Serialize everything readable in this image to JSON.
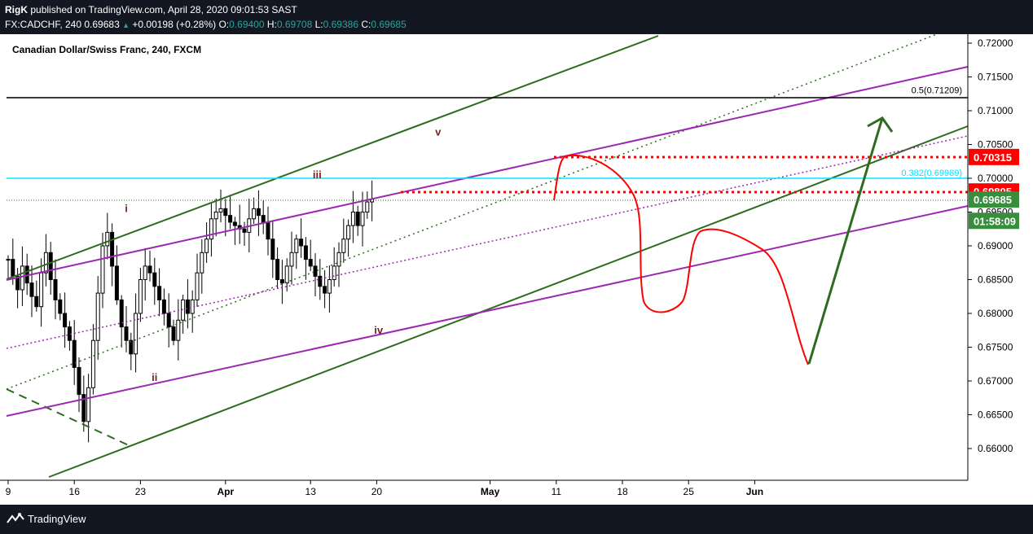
{
  "header": {
    "publisher": "RigK",
    "published_text": "published on TradingView.com, April 28, 2020 09:01:53 SAST",
    "symbol": "FX:CADCHF, 240",
    "last": "0.69683",
    "change": "+0.00198 (+0.28%)",
    "o_label": "O:",
    "o_value": "0.69400",
    "h_label": "H:",
    "h_value": "0.69708",
    "l_label": "L:",
    "l_value": "0.69386",
    "c_label": "C:",
    "c_value": "0.69685"
  },
  "footer": {
    "brand": "TradingView"
  },
  "chart_data": {
    "type": "candlestick",
    "title": "Canadian Dollar/Swiss Franc, 240, FXCM",
    "y_ticks": [
      "0.72000",
      "0.71500",
      "0.71000",
      "0.70500",
      "0.70000",
      "0.69500",
      "0.69000",
      "0.68500",
      "0.68000",
      "0.67500",
      "0.67000",
      "0.66500",
      "0.66000"
    ],
    "ylim": [
      0.6555,
      0.7225
    ],
    "x_ticks": [
      "9",
      "16",
      "23",
      "Apr",
      "13",
      "20",
      "May",
      "11",
      "18",
      "25",
      "Jun"
    ],
    "price_labels": [
      {
        "text": "0.70315",
        "value": 0.70315,
        "color": "#ff0000"
      },
      {
        "text": "0.69805",
        "value": 0.69805,
        "color": "#ff0000"
      },
      {
        "text": "0.69685",
        "value": 0.69685,
        "color": "#388e3c"
      },
      {
        "text": "01:58:09",
        "value": 0.6937,
        "color": "#388e3c"
      }
    ],
    "fib_levels": [
      {
        "text": "0.5(0.71209)",
        "value": 0.71209,
        "color": "#000000"
      },
      {
        "text": "0.382(0.69989)",
        "value": 0.69989,
        "color": "#00e5ff"
      }
    ],
    "wave_labels": [
      {
        "text": "i",
        "x_day": 21.5,
        "y": 0.695
      },
      {
        "text": "ii",
        "x_day": 24.5,
        "y": 0.67
      },
      {
        "text": "iii",
        "x_day": 41.7,
        "y": 0.7
      },
      {
        "text": "iv",
        "x_day": 48.2,
        "y": 0.677
      },
      {
        "text": "v",
        "x_day": 54.5,
        "y": 0.7063
      }
    ],
    "ohlc_close_series": {
      "start_day": 9,
      "step_days": 0.5,
      "close": [
        0.688,
        0.6855,
        0.6835,
        0.687,
        0.6845,
        0.6825,
        0.681,
        0.686,
        0.689,
        0.685,
        0.682,
        0.68,
        0.678,
        0.676,
        0.672,
        0.668,
        0.664,
        0.669,
        0.676,
        0.683,
        0.69,
        0.692,
        0.687,
        0.682,
        0.678,
        0.676,
        0.674,
        0.68,
        0.685,
        0.687,
        0.686,
        0.684,
        0.682,
        0.68,
        0.678,
        0.676,
        0.679,
        0.682,
        0.68,
        0.682,
        0.686,
        0.689,
        0.691,
        0.694,
        0.695,
        0.6955,
        0.6945,
        0.6935,
        0.693,
        0.6925,
        0.692,
        0.694,
        0.6955,
        0.6945,
        0.6935,
        0.691,
        0.688,
        0.685,
        0.6845,
        0.687,
        0.689,
        0.691,
        0.69,
        0.688,
        0.687,
        0.6855,
        0.684,
        0.683,
        0.685,
        0.687,
        0.689,
        0.691,
        0.693,
        0.695,
        0.693,
        0.695,
        0.6965,
        0.6969
      ]
    }
  }
}
